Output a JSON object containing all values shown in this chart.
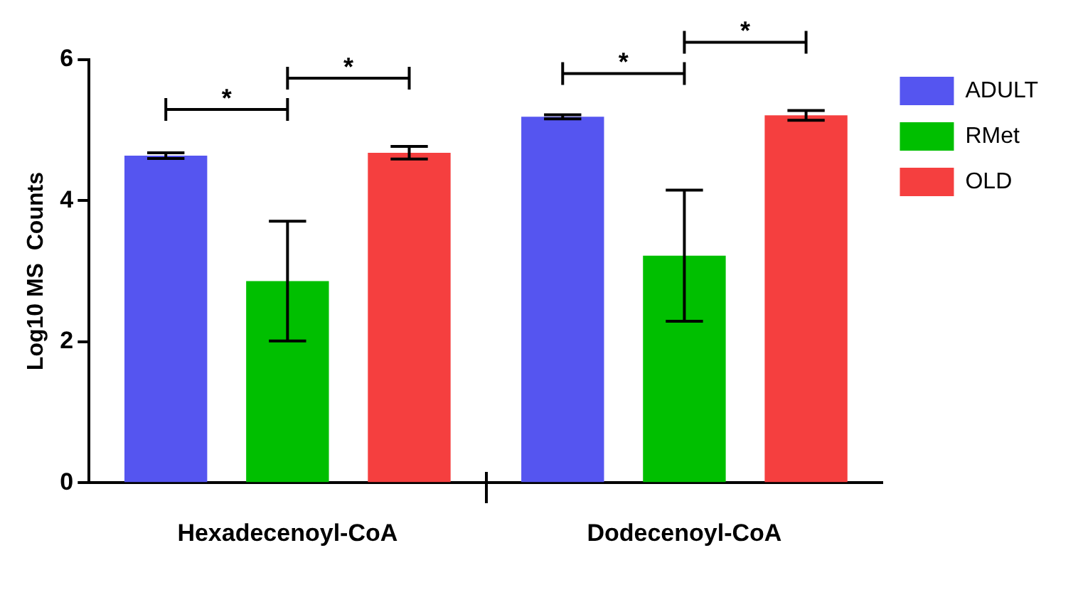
{
  "chart_data": {
    "type": "bar",
    "ylabel": "Log10 MS  Counts",
    "categories": [
      "Hexadecenoyl-CoA",
      "Dodecenoyl-CoA"
    ],
    "series": [
      {
        "name": "ADULT",
        "color": "#5555f0",
        "values": [
          4.64,
          5.19
        ],
        "errors": [
          0.04,
          0.03
        ]
      },
      {
        "name": "RMet",
        "color": "#00bf00",
        "values": [
          2.86,
          3.22
        ],
        "errors": [
          0.85,
          0.93
        ]
      },
      {
        "name": "OLD",
        "color": "#f53f3f",
        "values": [
          4.68,
          5.21
        ],
        "errors": [
          0.09,
          0.07
        ]
      }
    ],
    "ylim": [
      0,
      6
    ],
    "yticks": [
      0,
      2,
      4,
      6
    ],
    "grid": false,
    "legend": "top right",
    "annotations": [
      "*",
      "*",
      "*",
      "*"
    ]
  }
}
